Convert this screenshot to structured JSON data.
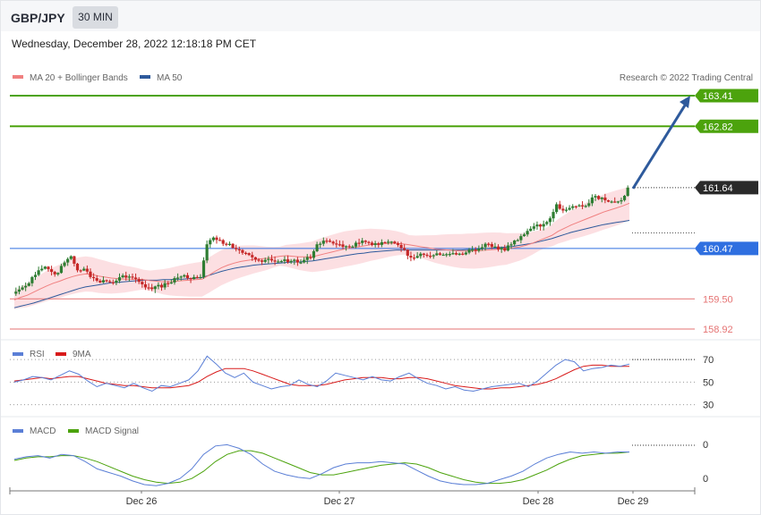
{
  "header": {
    "symbol": "GBP/JPY",
    "timeframe": "30 MIN"
  },
  "datetime": "Wednesday, December 28, 2022 12:18:18 PM CET",
  "colors": {
    "ma20": "#f08080",
    "ma50": "#2e5a9c",
    "bands": "#fbd4d8",
    "up": "#2e7d32",
    "down": "#c62828",
    "resistance": "#4ca30d",
    "pivot": "#2f6fe0",
    "support": "#e57373",
    "arrow": "#2e5a9c",
    "rsi": "#5b7fd6",
    "rsi_ma": "#d81b1b",
    "macd": "#5b7fd6",
    "macd_signal": "#4ca30d"
  },
  "chart_data": [
    {
      "type": "candlestick",
      "title": "GBP/JPY",
      "legend": [
        {
          "name": "MA 20 + Bollinger Bands",
          "color": "#f08080"
        },
        {
          "name": "MA 50",
          "color": "#2e5a9c"
        }
      ],
      "legend_position": "top-left",
      "credit": "Research © 2022 Trading Central",
      "x_ticks": [
        "Dec 26",
        "Dec 27",
        "Dec 28",
        "Dec 29"
      ],
      "ylim": [
        158.85,
        163.55
      ],
      "last_price": 161.64,
      "levels": [
        {
          "value": 163.41,
          "label": "163.41",
          "role": "resistance"
        },
        {
          "value": 162.82,
          "label": "162.82",
          "role": "resistance"
        },
        {
          "value": 161.64,
          "label": "161.64",
          "role": "last"
        },
        {
          "value": 160.47,
          "label": "160.47",
          "role": "pivot"
        },
        {
          "value": 159.5,
          "label": "159.50",
          "role": "support"
        },
        {
          "value": 158.92,
          "label": "158.92",
          "role": "support"
        }
      ],
      "arrow": {
        "from": 161.64,
        "to": 163.41,
        "direction": "up"
      },
      "close_path": [
        159.6,
        159.68,
        159.75,
        159.92,
        160.05,
        160.12,
        160.02,
        160.0,
        160.2,
        160.32,
        160.05,
        160.08,
        159.92,
        159.85,
        159.86,
        159.82,
        159.85,
        159.95,
        159.93,
        159.88,
        159.78,
        159.72,
        159.74,
        159.72,
        159.8,
        159.9,
        159.93,
        159.9,
        159.92,
        159.92,
        160.55,
        160.68,
        160.63,
        160.55,
        160.48,
        160.44,
        160.38,
        160.3,
        160.24,
        160.25,
        160.24,
        160.22,
        160.26,
        160.23,
        160.2,
        160.25,
        160.29,
        160.55,
        160.62,
        160.6,
        160.55,
        160.5,
        160.5,
        160.58,
        160.62,
        160.58,
        160.57,
        160.59,
        160.6,
        160.57,
        160.48,
        160.33,
        160.29,
        160.37,
        160.33,
        160.34,
        160.35,
        160.36,
        160.38,
        160.37,
        160.39,
        160.45,
        160.47,
        160.56,
        160.5,
        160.45,
        160.43,
        160.55,
        160.63,
        160.74,
        160.85,
        160.93,
        160.94,
        161.05,
        161.32,
        161.2,
        161.25,
        161.28,
        161.28,
        161.34,
        161.48,
        161.45,
        161.37,
        161.36,
        161.4,
        161.64
      ],
      "ma20_path": [
        159.48,
        159.53,
        159.57,
        159.63,
        159.69,
        159.75,
        159.8,
        159.84,
        159.89,
        159.93,
        159.96,
        159.98,
        159.97,
        159.94,
        159.92,
        159.9,
        159.89,
        159.88,
        159.88,
        159.88,
        159.87,
        159.85,
        159.84,
        159.83,
        159.83,
        159.84,
        159.85,
        159.86,
        159.87,
        159.88,
        159.95,
        160.03,
        160.1,
        160.15,
        160.19,
        160.22,
        160.24,
        160.26,
        160.27,
        160.28,
        160.3,
        160.32,
        160.33,
        160.32,
        160.31,
        160.31,
        160.31,
        160.34,
        160.37,
        160.4,
        160.43,
        160.46,
        160.48,
        160.5,
        160.52,
        160.54,
        160.55,
        160.56,
        160.57,
        160.57,
        160.56,
        160.54,
        160.52,
        160.5,
        160.48,
        160.46,
        160.45,
        160.44,
        160.43,
        160.42,
        160.42,
        160.42,
        160.43,
        160.44,
        160.45,
        160.46,
        160.46,
        160.48,
        160.5,
        160.53,
        160.57,
        160.62,
        160.67,
        160.72,
        160.8,
        160.86,
        160.92,
        160.97,
        161.02,
        161.07,
        161.12,
        161.17,
        161.21,
        161.25,
        161.29,
        161.34
      ],
      "ma50_path": [
        159.33,
        159.36,
        159.39,
        159.42,
        159.46,
        159.5,
        159.54,
        159.58,
        159.62,
        159.66,
        159.7,
        159.73,
        159.75,
        159.77,
        159.79,
        159.81,
        159.82,
        159.83,
        159.84,
        159.85,
        159.86,
        159.86,
        159.86,
        159.87,
        159.87,
        159.88,
        159.88,
        159.89,
        159.9,
        159.91,
        159.95,
        159.99,
        160.03,
        160.06,
        160.09,
        160.11,
        160.13,
        160.15,
        160.16,
        160.17,
        160.18,
        160.19,
        160.2,
        160.21,
        160.21,
        160.22,
        160.23,
        160.25,
        160.27,
        160.29,
        160.31,
        160.33,
        160.35,
        160.37,
        160.38,
        160.4,
        160.41,
        160.42,
        160.43,
        160.44,
        160.44,
        160.44,
        160.44,
        160.44,
        160.44,
        160.44,
        160.44,
        160.44,
        160.44,
        160.44,
        160.45,
        160.45,
        160.46,
        160.47,
        160.48,
        160.49,
        160.5,
        160.51,
        160.53,
        160.55,
        160.57,
        160.6,
        160.63,
        160.66,
        160.7,
        160.74,
        160.78,
        160.81,
        160.84,
        160.87,
        160.9,
        160.93,
        160.95,
        160.97,
        160.99,
        161.01
      ]
    },
    {
      "type": "line",
      "title": "RSI",
      "series": [
        {
          "name": "RSI",
          "color": "#5b7fd6"
        },
        {
          "name": "9MA",
          "color": "#d81b1b"
        }
      ],
      "y_ticks": [
        "70",
        "50",
        "30"
      ],
      "ylim": [
        25,
        78
      ],
      "rsi_path": [
        50,
        52,
        55,
        54,
        52,
        56,
        60,
        57,
        51,
        46,
        49,
        47,
        45,
        49,
        45,
        42,
        47,
        46,
        49,
        52,
        60,
        73,
        66,
        58,
        54,
        58,
        50,
        47,
        44,
        46,
        47,
        52,
        48,
        46,
        51,
        58,
        56,
        54,
        52,
        55,
        52,
        51,
        55,
        58,
        53,
        49,
        47,
        44,
        46,
        43,
        42,
        44,
        46,
        47,
        48,
        49,
        46,
        51,
        58,
        65,
        70,
        68,
        60,
        62,
        63,
        65,
        64,
        66
      ],
      "ma9_path": [
        51,
        52,
        53,
        54,
        53,
        54,
        55,
        55,
        53,
        51,
        49,
        48,
        47,
        47,
        46,
        45,
        45,
        45,
        46,
        47,
        50,
        55,
        59,
        62,
        62,
        62,
        60,
        57,
        54,
        51,
        48,
        47,
        47,
        47,
        48,
        50,
        52,
        53,
        54,
        54,
        54,
        53,
        53,
        54,
        54,
        53,
        51,
        49,
        47,
        46,
        45,
        44,
        44,
        45,
        45,
        46,
        47,
        48,
        50,
        53,
        57,
        61,
        64,
        65,
        65,
        64,
        64,
        64
      ]
    },
    {
      "type": "line",
      "title": "MACD",
      "series": [
        {
          "name": "MACD",
          "color": "#5b7fd6"
        },
        {
          "name": "MACD Signal",
          "color": "#4ca30d"
        }
      ],
      "y_ticks": [
        "0",
        "0"
      ],
      "ylim": [
        -0.2,
        0.2
      ],
      "macd_path": [
        0.04,
        0.06,
        0.07,
        0.05,
        0.08,
        0.07,
        0.02,
        -0.04,
        -0.07,
        -0.1,
        -0.14,
        -0.17,
        -0.18,
        -0.16,
        -0.12,
        -0.04,
        0.08,
        0.15,
        0.16,
        0.13,
        0.08,
        0.0,
        -0.06,
        -0.09,
        -0.11,
        -0.12,
        -0.08,
        -0.03,
        0.0,
        0.01,
        0.01,
        0.02,
        0.01,
        0.0,
        -0.05,
        -0.1,
        -0.14,
        -0.16,
        -0.17,
        -0.17,
        -0.16,
        -0.13,
        -0.1,
        -0.06,
        0.0,
        0.05,
        0.08,
        0.1,
        0.09,
        0.1,
        0.09,
        0.1,
        0.1
      ],
      "signal_path": [
        0.03,
        0.05,
        0.06,
        0.06,
        0.07,
        0.07,
        0.05,
        0.02,
        -0.02,
        -0.06,
        -0.1,
        -0.13,
        -0.15,
        -0.16,
        -0.15,
        -0.12,
        -0.06,
        0.02,
        0.08,
        0.11,
        0.11,
        0.09,
        0.05,
        0.01,
        -0.03,
        -0.07,
        -0.09,
        -0.09,
        -0.07,
        -0.05,
        -0.03,
        -0.01,
        0.0,
        0.01,
        0.0,
        -0.03,
        -0.07,
        -0.1,
        -0.13,
        -0.15,
        -0.16,
        -0.16,
        -0.15,
        -0.13,
        -0.09,
        -0.05,
        0.0,
        0.04,
        0.07,
        0.08,
        0.09,
        0.09,
        0.1
      ]
    }
  ]
}
